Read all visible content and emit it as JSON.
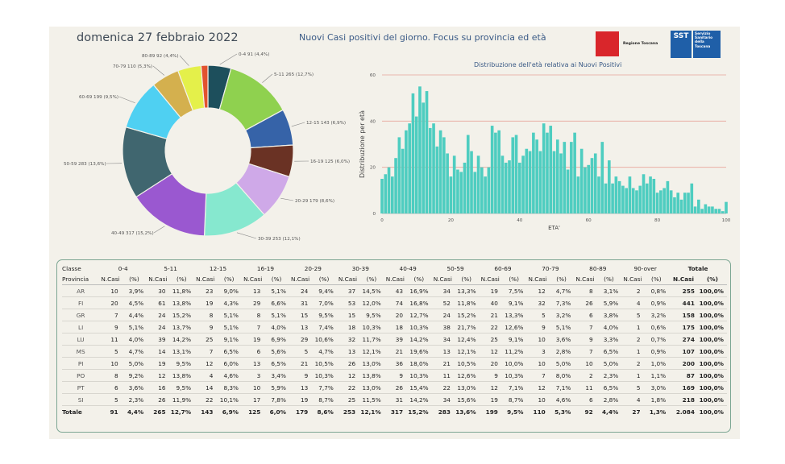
{
  "header": {
    "date": "domenica 27 febbraio 2022",
    "title": "Nuovi Casi positivi del giorno. Focus su provincia ed età",
    "logo_regione": "Regione Toscana",
    "logo_sst_short": "SST",
    "logo_sst_full": "Servizio Sanitario della Toscana"
  },
  "colors": {
    "panel": "#f3f1ea",
    "hist_bar": "#4ecdc0",
    "gridline": "#e7a59a",
    "table_border": "#7ca693"
  },
  "chart_data": [
    {
      "type": "pie",
      "variant": "donut",
      "slices": [
        {
          "label": "0-4 91 (4,4%)",
          "value": 91,
          "color": "#1d4f5c"
        },
        {
          "label": "5-11 265 (12,7%)",
          "value": 265,
          "color": "#8fd14f"
        },
        {
          "label": "12-15 143 (6,9%)",
          "value": 143,
          "color": "#3663a8"
        },
        {
          "label": "16-19 125 (6,0%)",
          "value": 125,
          "color": "#6a3224"
        },
        {
          "label": "20-29 179 (8,6%)",
          "value": 179,
          "color": "#cfa9e8"
        },
        {
          "label": "30-39 253 (12,1%)",
          "value": 253,
          "color": "#86e8cf"
        },
        {
          "label": "40-49 317 (15,2%)",
          "value": 317,
          "color": "#9a58d0"
        },
        {
          "label": "50-59 283 (13,6%)",
          "value": 283,
          "color": "#40666f"
        },
        {
          "label": "60-69 199 (9,5%)",
          "value": 199,
          "color": "#4fd0f2"
        },
        {
          "label": "70-79 110 (5,3%)",
          "value": 110,
          "color": "#d4b04e"
        },
        {
          "label": "80-89 92 (4,4%)",
          "value": 92,
          "color": "#e4f04a"
        },
        {
          "label": "90-over 27",
          "value": 27,
          "color": "#e2532f"
        }
      ]
    },
    {
      "type": "bar",
      "title": "Distribuzione dell'età relativa ai Nuovi Positivi",
      "xlabel": "ETA'",
      "ylabel": "Distribuzione per età",
      "xlim": [
        0,
        100
      ],
      "ylim": [
        0,
        60
      ],
      "xticks": [
        0,
        20,
        40,
        60,
        80,
        100
      ],
      "yticks": [
        0,
        20,
        40,
        60
      ],
      "grid": true,
      "x": [
        0,
        1,
        2,
        3,
        4,
        5,
        6,
        7,
        8,
        9,
        10,
        11,
        12,
        13,
        14,
        15,
        16,
        17,
        18,
        19,
        20,
        21,
        22,
        23,
        24,
        25,
        26,
        27,
        28,
        29,
        30,
        31,
        32,
        33,
        34,
        35,
        36,
        37,
        38,
        39,
        40,
        41,
        42,
        43,
        44,
        45,
        46,
        47,
        48,
        49,
        50,
        51,
        52,
        53,
        54,
        55,
        56,
        57,
        58,
        59,
        60,
        61,
        62,
        63,
        64,
        65,
        66,
        67,
        68,
        69,
        70,
        71,
        72,
        73,
        74,
        75,
        76,
        77,
        78,
        79,
        80,
        81,
        82,
        83,
        84,
        85,
        86,
        87,
        88,
        89,
        90,
        91,
        92,
        93,
        94,
        95,
        96,
        97,
        98,
        99,
        100
      ],
      "values": [
        15,
        17,
        20,
        16,
        24,
        33,
        28,
        36,
        39,
        52,
        42,
        55,
        48,
        53,
        37,
        39,
        29,
        36,
        33,
        26,
        16,
        25,
        19,
        18,
        22,
        34,
        27,
        18,
        25,
        20,
        16,
        20,
        38,
        35,
        36,
        25,
        22,
        23,
        33,
        34,
        22,
        25,
        28,
        27,
        35,
        32,
        27,
        39,
        35,
        38,
        27,
        32,
        26,
        31,
        19,
        31,
        35,
        16,
        28,
        20,
        21,
        24,
        26,
        16,
        31,
        13,
        23,
        13,
        16,
        14,
        12,
        11,
        16,
        11,
        10,
        12,
        17,
        13,
        16,
        15,
        9,
        10,
        11,
        14,
        10,
        7,
        9,
        6,
        9,
        9,
        13,
        3,
        6,
        2,
        4,
        3,
        3,
        2,
        2,
        1,
        5
      ]
    },
    {
      "type": "table",
      "age_classes": [
        "0-4",
        "5-11",
        "12-15",
        "16-19",
        "20-29",
        "30-39",
        "40-49",
        "50-59",
        "60-69",
        "70-79",
        "80-89",
        "90-over"
      ],
      "row_labels": {
        "class": "Classe",
        "province": "Provincia"
      },
      "col_labels": {
        "count": "N.Casi",
        "pct": "(%)",
        "total": "Totale"
      },
      "rows": [
        {
          "prov": "AR",
          "cells": [
            [
              "10",
              "3,9%"
            ],
            [
              "30",
              "11,8%"
            ],
            [
              "23",
              "9,0%"
            ],
            [
              "13",
              "5,1%"
            ],
            [
              "24",
              "9,4%"
            ],
            [
              "37",
              "14,5%"
            ],
            [
              "43",
              "16,9%"
            ],
            [
              "34",
              "13,3%"
            ],
            [
              "19",
              "7,5%"
            ],
            [
              "12",
              "4,7%"
            ],
            [
              "8",
              "3,1%"
            ],
            [
              "2",
              "0,8%"
            ]
          ],
          "total": [
            "255",
            "100,0%"
          ]
        },
        {
          "prov": "FI",
          "cells": [
            [
              "20",
              "4,5%"
            ],
            [
              "61",
              "13,8%"
            ],
            [
              "19",
              "4,3%"
            ],
            [
              "29",
              "6,6%"
            ],
            [
              "31",
              "7,0%"
            ],
            [
              "53",
              "12,0%"
            ],
            [
              "74",
              "16,8%"
            ],
            [
              "52",
              "11,8%"
            ],
            [
              "40",
              "9,1%"
            ],
            [
              "32",
              "7,3%"
            ],
            [
              "26",
              "5,9%"
            ],
            [
              "4",
              "0,9%"
            ]
          ],
          "total": [
            "441",
            "100,0%"
          ]
        },
        {
          "prov": "GR",
          "cells": [
            [
              "7",
              "4,4%"
            ],
            [
              "24",
              "15,2%"
            ],
            [
              "8",
              "5,1%"
            ],
            [
              "8",
              "5,1%"
            ],
            [
              "15",
              "9,5%"
            ],
            [
              "15",
              "9,5%"
            ],
            [
              "20",
              "12,7%"
            ],
            [
              "24",
              "15,2%"
            ],
            [
              "21",
              "13,3%"
            ],
            [
              "5",
              "3,2%"
            ],
            [
              "6",
              "3,8%"
            ],
            [
              "5",
              "3,2%"
            ]
          ],
          "total": [
            "158",
            "100,0%"
          ]
        },
        {
          "prov": "LI",
          "cells": [
            [
              "9",
              "5,1%"
            ],
            [
              "24",
              "13,7%"
            ],
            [
              "9",
              "5,1%"
            ],
            [
              "7",
              "4,0%"
            ],
            [
              "13",
              "7,4%"
            ],
            [
              "18",
              "10,3%"
            ],
            [
              "18",
              "10,3%"
            ],
            [
              "38",
              "21,7%"
            ],
            [
              "22",
              "12,6%"
            ],
            [
              "9",
              "5,1%"
            ],
            [
              "7",
              "4,0%"
            ],
            [
              "1",
              "0,6%"
            ]
          ],
          "total": [
            "175",
            "100,0%"
          ]
        },
        {
          "prov": "LU",
          "cells": [
            [
              "11",
              "4,0%"
            ],
            [
              "39",
              "14,2%"
            ],
            [
              "25",
              "9,1%"
            ],
            [
              "19",
              "6,9%"
            ],
            [
              "29",
              "10,6%"
            ],
            [
              "32",
              "11,7%"
            ],
            [
              "39",
              "14,2%"
            ],
            [
              "34",
              "12,4%"
            ],
            [
              "25",
              "9,1%"
            ],
            [
              "10",
              "3,6%"
            ],
            [
              "9",
              "3,3%"
            ],
            [
              "2",
              "0,7%"
            ]
          ],
          "total": [
            "274",
            "100,0%"
          ]
        },
        {
          "prov": "MS",
          "cells": [
            [
              "5",
              "4,7%"
            ],
            [
              "14",
              "13,1%"
            ],
            [
              "7",
              "6,5%"
            ],
            [
              "6",
              "5,6%"
            ],
            [
              "5",
              "4,7%"
            ],
            [
              "13",
              "12,1%"
            ],
            [
              "21",
              "19,6%"
            ],
            [
              "13",
              "12,1%"
            ],
            [
              "12",
              "11,2%"
            ],
            [
              "3",
              "2,8%"
            ],
            [
              "7",
              "6,5%"
            ],
            [
              "1",
              "0,9%"
            ]
          ],
          "total": [
            "107",
            "100,0%"
          ]
        },
        {
          "prov": "PI",
          "cells": [
            [
              "10",
              "5,0%"
            ],
            [
              "19",
              "9,5%"
            ],
            [
              "12",
              "6,0%"
            ],
            [
              "13",
              "6,5%"
            ],
            [
              "21",
              "10,5%"
            ],
            [
              "26",
              "13,0%"
            ],
            [
              "36",
              "18,0%"
            ],
            [
              "21",
              "10,5%"
            ],
            [
              "20",
              "10,0%"
            ],
            [
              "10",
              "5,0%"
            ],
            [
              "10",
              "5,0%"
            ],
            [
              "2",
              "1,0%"
            ]
          ],
          "total": [
            "200",
            "100,0%"
          ]
        },
        {
          "prov": "PO",
          "cells": [
            [
              "8",
              "9,2%"
            ],
            [
              "12",
              "13,8%"
            ],
            [
              "4",
              "4,6%"
            ],
            [
              "3",
              "3,4%"
            ],
            [
              "9",
              "10,3%"
            ],
            [
              "12",
              "13,8%"
            ],
            [
              "9",
              "10,3%"
            ],
            [
              "11",
              "12,6%"
            ],
            [
              "9",
              "10,3%"
            ],
            [
              "7",
              "8,0%"
            ],
            [
              "2",
              "2,3%"
            ],
            [
              "1",
              "1,1%"
            ]
          ],
          "total": [
            "87",
            "100,0%"
          ]
        },
        {
          "prov": "PT",
          "cells": [
            [
              "6",
              "3,6%"
            ],
            [
              "16",
              "9,5%"
            ],
            [
              "14",
              "8,3%"
            ],
            [
              "10",
              "5,9%"
            ],
            [
              "13",
              "7,7%"
            ],
            [
              "22",
              "13,0%"
            ],
            [
              "26",
              "15,4%"
            ],
            [
              "22",
              "13,0%"
            ],
            [
              "12",
              "7,1%"
            ],
            [
              "12",
              "7,1%"
            ],
            [
              "11",
              "6,5%"
            ],
            [
              "5",
              "3,0%"
            ]
          ],
          "total": [
            "169",
            "100,0%"
          ]
        },
        {
          "prov": "SI",
          "cells": [
            [
              "5",
              "2,3%"
            ],
            [
              "26",
              "11,9%"
            ],
            [
              "22",
              "10,1%"
            ],
            [
              "17",
              "7,8%"
            ],
            [
              "19",
              "8,7%"
            ],
            [
              "25",
              "11,5%"
            ],
            [
              "31",
              "14,2%"
            ],
            [
              "34",
              "15,6%"
            ],
            [
              "19",
              "8,7%"
            ],
            [
              "10",
              "4,6%"
            ],
            [
              "6",
              "2,8%"
            ],
            [
              "4",
              "1,8%"
            ]
          ],
          "total": [
            "218",
            "100,0%"
          ]
        }
      ],
      "total_row": {
        "prov": "Totale",
        "cells": [
          [
            "91",
            "4,4%"
          ],
          [
            "265",
            "12,7%"
          ],
          [
            "143",
            "6,9%"
          ],
          [
            "125",
            "6,0%"
          ],
          [
            "179",
            "8,6%"
          ],
          [
            "253",
            "12,1%"
          ],
          [
            "317",
            "15,2%"
          ],
          [
            "283",
            "13,6%"
          ],
          [
            "199",
            "9,5%"
          ],
          [
            "110",
            "5,3%"
          ],
          [
            "92",
            "4,4%"
          ],
          [
            "27",
            "1,3%"
          ]
        ],
        "total": [
          "2.084",
          "100,0%"
        ]
      }
    }
  ]
}
